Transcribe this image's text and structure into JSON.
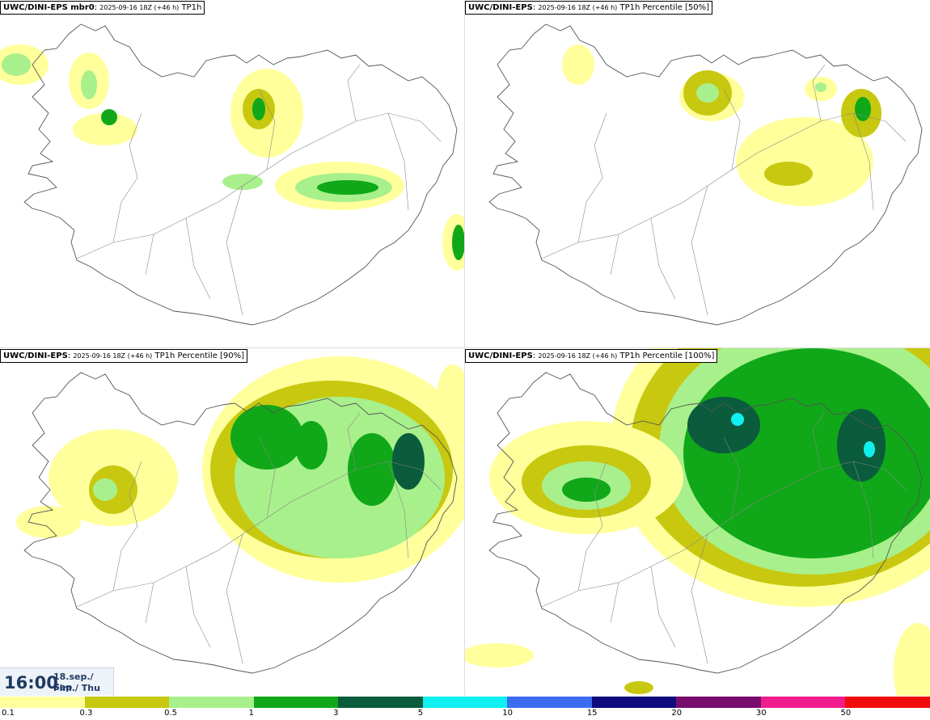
{
  "panels": [
    {
      "model": "UWC/DINI-EPS mbr0",
      "run": "2025-09-16 18Z (+46 h)",
      "field": "TP1h"
    },
    {
      "model": "UWC/DINI-EPS",
      "run": "2025-09-16 18Z (+46 h)",
      "field": "TP1h Percentile [50%]"
    },
    {
      "model": "UWC/DINI-EPS",
      "run": "2025-09-16 18Z (+46 h)",
      "field": "TP1h Percentile [90%]"
    },
    {
      "model": "UWC/DINI-EPS",
      "run": "2025-09-16 18Z (+46 h)",
      "field": "TP1h Percentile [100%]"
    }
  ],
  "valid_time": {
    "time": "16:00",
    "date_line1": "18.sep./ Sep",
    "date_line2": "Fim./ Thu"
  },
  "legend": {
    "colors": [
      "#ffff9c",
      "#c8c810",
      "#a8f08c",
      "#10a818",
      "#0a5c3c",
      "#10f0f0",
      "#3c6cf0",
      "#0c0c7c",
      "#780c6c",
      "#f01c8c",
      "#f00c0c"
    ],
    "labels": [
      "0.1",
      "0.3",
      "0.5",
      "1",
      "3",
      "5",
      "10",
      "15",
      "20",
      "30",
      "50"
    ]
  },
  "map_colors": {
    "coast": "#555555",
    "roads": "#888888"
  }
}
